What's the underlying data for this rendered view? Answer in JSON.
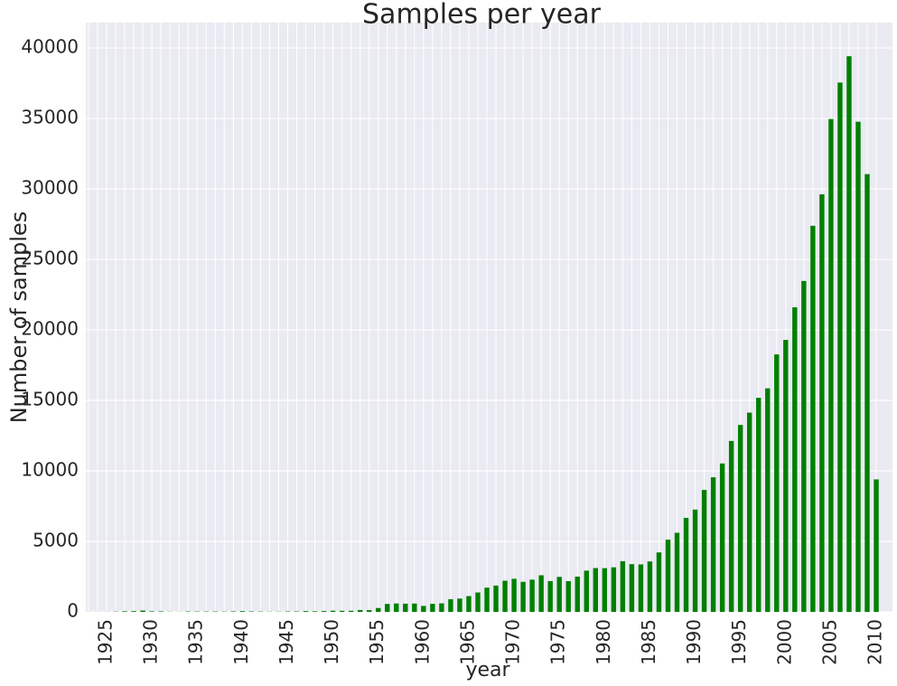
{
  "chart_data": {
    "type": "bar",
    "title": "Samples per year",
    "x_label": "year",
    "y_label": "Number of samples",
    "categories": [
      null,
      null,
      1925,
      null,
      null,
      null,
      null,
      1930,
      null,
      null,
      null,
      null,
      1935,
      null,
      null,
      null,
      null,
      1940,
      null,
      null,
      null,
      null,
      1945,
      null,
      null,
      null,
      null,
      1950,
      null,
      null,
      null,
      null,
      1955,
      null,
      null,
      null,
      null,
      1960,
      null,
      null,
      null,
      null,
      1965,
      null,
      null,
      null,
      null,
      1970,
      null,
      null,
      null,
      null,
      1975,
      null,
      null,
      null,
      null,
      1980,
      null,
      null,
      null,
      null,
      1985,
      null,
      null,
      null,
      null,
      1990,
      null,
      null,
      null,
      null,
      1995,
      null,
      null,
      null,
      null,
      2000,
      null,
      null,
      null,
      null,
      2005,
      null,
      null,
      null,
      null,
      2010
    ],
    "values": [
      6,
      5,
      7,
      19,
      42,
      52,
      93,
      40,
      35,
      11,
      6,
      29,
      24,
      25,
      28,
      19,
      35,
      52,
      32,
      24,
      14,
      15,
      30,
      29,
      57,
      43,
      60,
      84,
      74,
      77,
      133,
      123,
      275,
      565,
      597,
      583,
      592,
      424,
      572,
      605,
      902,
      945,
      1120,
      1377,
      1718,
      1867,
      2211,
      2349,
      2131,
      2288,
      2596,
      2184,
      2482,
      2179,
      2502,
      2926,
      3108,
      3101,
      3162,
      3597,
      3386,
      3368,
      3578,
      4219,
      5122,
      5611,
      6670,
      7258,
      8650,
      9547,
      10529,
      12127,
      13260,
      14135,
      15182,
      15858,
      18263,
      19293,
      21604,
      23472,
      27389,
      29618,
      34960,
      37546,
      39414,
      34770,
      31051,
      9397
    ],
    "color": "#008000",
    "ylim": [
      0,
      41800
    ],
    "yticks": [
      0,
      5000,
      10000,
      15000,
      20000,
      25000,
      30000,
      35000,
      40000
    ],
    "grid": true
  }
}
